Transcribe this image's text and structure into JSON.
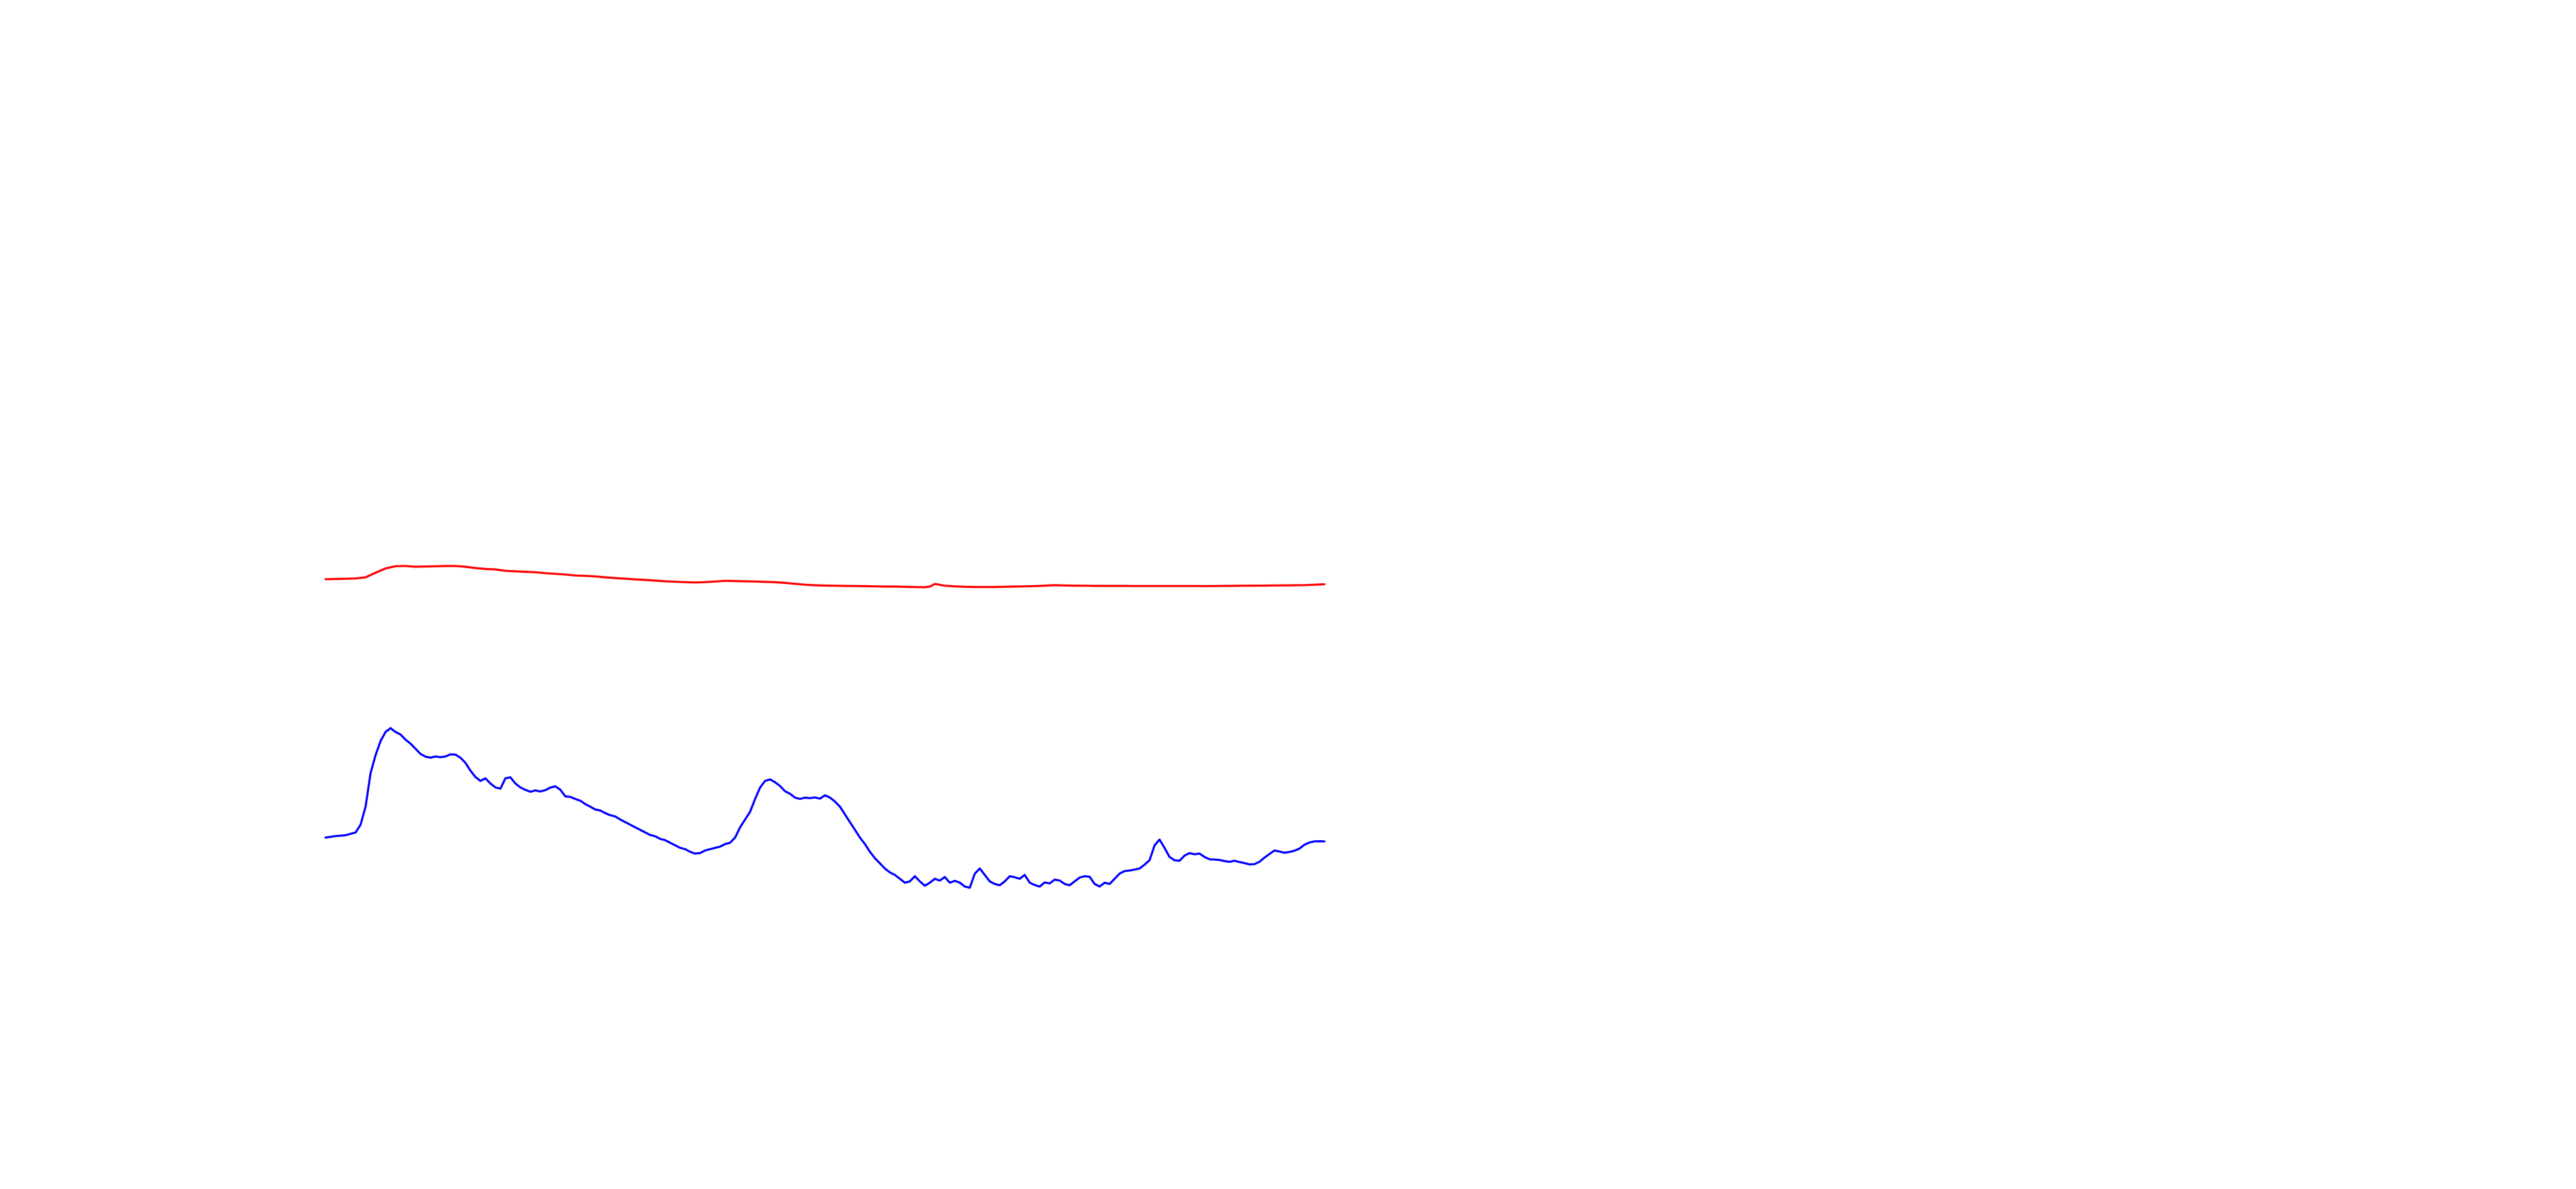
{
  "chart_data": {
    "type": "line",
    "title": "",
    "xlabel": "",
    "ylabel": "",
    "grid": false,
    "legend": "none",
    "x_range": [
      0,
      200
    ],
    "y_range": [
      0,
      100
    ],
    "series": [
      {
        "color": "#ff0000",
        "points": [
          [
            0,
            13
          ],
          [
            3,
            13.3
          ],
          [
            6,
            13.8
          ],
          [
            8,
            15
          ],
          [
            10,
            20
          ],
          [
            12,
            24.6
          ],
          [
            14,
            27
          ],
          [
            16,
            27.3
          ],
          [
            18,
            26.4
          ],
          [
            20,
            26.7
          ],
          [
            22,
            26.9
          ],
          [
            24,
            27.2
          ],
          [
            26,
            27.3
          ],
          [
            28,
            26.4
          ],
          [
            30,
            25
          ],
          [
            32,
            24
          ],
          [
            34,
            23.6
          ],
          [
            36,
            22
          ],
          [
            38,
            21.5
          ],
          [
            40,
            21
          ],
          [
            42,
            20.5
          ],
          [
            44,
            19.5
          ],
          [
            46,
            18.8
          ],
          [
            48,
            18
          ],
          [
            50,
            17
          ],
          [
            52,
            16.6
          ],
          [
            54,
            16
          ],
          [
            56,
            15
          ],
          [
            58,
            14.2
          ],
          [
            60,
            13.5
          ],
          [
            62,
            12.8
          ],
          [
            64,
            12.2
          ],
          [
            66,
            11.4
          ],
          [
            68,
            10.7
          ],
          [
            70,
            10.2
          ],
          [
            72,
            9.8
          ],
          [
            74,
            9.4
          ],
          [
            76,
            9.8
          ],
          [
            78,
            10.5
          ],
          [
            80,
            11.2
          ],
          [
            82,
            11
          ],
          [
            84,
            10.7
          ],
          [
            86,
            10.5
          ],
          [
            88,
            10.1
          ],
          [
            90,
            9.7
          ],
          [
            92,
            9
          ],
          [
            94,
            8
          ],
          [
            96,
            7
          ],
          [
            98,
            6.4
          ],
          [
            100,
            6.1
          ],
          [
            102,
            5.9
          ],
          [
            104,
            5.7
          ],
          [
            106,
            5.6
          ],
          [
            108,
            5.4
          ],
          [
            110,
            5.2
          ],
          [
            112,
            5
          ],
          [
            114,
            5
          ],
          [
            116,
            4.7
          ],
          [
            118,
            4.5
          ],
          [
            120,
            4.3
          ],
          [
            121,
            5
          ],
          [
            122,
            7.8
          ],
          [
            123,
            6.9
          ],
          [
            124,
            5.9
          ],
          [
            126,
            5.2
          ],
          [
            128,
            4.8
          ],
          [
            130,
            4.6
          ],
          [
            132,
            4.5
          ],
          [
            134,
            4.6
          ],
          [
            136,
            4.8
          ],
          [
            138,
            5
          ],
          [
            140,
            5.2
          ],
          [
            142,
            5.5
          ],
          [
            144,
            6
          ],
          [
            146,
            6.5
          ],
          [
            148,
            6.2
          ],
          [
            150,
            6
          ],
          [
            152,
            5.9
          ],
          [
            154,
            5.8
          ],
          [
            156,
            5.7
          ],
          [
            158,
            5.7
          ],
          [
            160,
            5.7
          ],
          [
            162,
            5.6
          ],
          [
            164,
            5.6
          ],
          [
            166,
            5.6
          ],
          [
            168,
            5.6
          ],
          [
            170,
            5.6
          ],
          [
            172,
            5.6
          ],
          [
            174,
            5.6
          ],
          [
            176,
            5.5
          ],
          [
            178,
            5.6
          ],
          [
            180,
            5.7
          ],
          [
            182,
            5.8
          ],
          [
            184,
            5.9
          ],
          [
            186,
            6
          ],
          [
            188,
            6.1
          ],
          [
            190,
            6.2
          ],
          [
            192,
            6.3
          ],
          [
            194,
            6.4
          ],
          [
            196,
            6.6
          ],
          [
            198,
            7
          ],
          [
            200,
            7.5
          ]
        ]
      },
      {
        "color": "#0000ff",
        "points": [
          [
            0,
            30
          ],
          [
            2,
            30.6
          ],
          [
            4,
            30.9
          ],
          [
            6,
            32
          ],
          [
            7,
            35
          ],
          [
            8,
            42
          ],
          [
            9,
            55
          ],
          [
            10,
            62
          ],
          [
            11,
            67.5
          ],
          [
            12,
            71
          ],
          [
            13,
            72.5
          ],
          [
            14,
            71
          ],
          [
            15,
            70
          ],
          [
            16,
            68
          ],
          [
            17,
            66.5
          ],
          [
            18,
            64.5
          ],
          [
            19,
            62.5
          ],
          [
            20,
            61.4
          ],
          [
            21,
            61
          ],
          [
            22,
            61.5
          ],
          [
            23,
            61.2
          ],
          [
            24,
            61.5
          ],
          [
            25,
            62.3
          ],
          [
            26,
            62.2
          ],
          [
            27,
            61
          ],
          [
            28,
            59
          ],
          [
            29,
            56
          ],
          [
            30,
            53.5
          ],
          [
            31,
            52
          ],
          [
            32,
            53
          ],
          [
            33,
            51
          ],
          [
            34,
            49.5
          ],
          [
            35,
            49
          ],
          [
            36,
            53
          ],
          [
            37,
            53.4
          ],
          [
            38,
            51
          ],
          [
            39,
            49.5
          ],
          [
            40,
            48.5
          ],
          [
            41,
            47.8
          ],
          [
            42,
            48.3
          ],
          [
            43,
            47.9
          ],
          [
            44,
            48.4
          ],
          [
            45,
            49.4
          ],
          [
            46,
            49.9
          ],
          [
            47,
            48.6
          ],
          [
            48,
            46
          ],
          [
            49,
            45.8
          ],
          [
            50,
            45
          ],
          [
            51,
            44.3
          ],
          [
            52,
            43
          ],
          [
            53,
            42
          ],
          [
            54,
            40.9
          ],
          [
            55,
            40.5
          ],
          [
            56,
            39.5
          ],
          [
            57,
            38.7
          ],
          [
            58,
            38.2
          ],
          [
            59,
            37
          ],
          [
            60,
            36
          ],
          [
            61,
            35
          ],
          [
            62,
            34
          ],
          [
            63,
            33
          ],
          [
            64,
            32
          ],
          [
            65,
            31
          ],
          [
            66,
            30.5
          ],
          [
            67,
            29.5
          ],
          [
            68,
            29
          ],
          [
            69,
            28
          ],
          [
            70,
            27
          ],
          [
            71,
            26
          ],
          [
            72,
            25.5
          ],
          [
            73,
            24.5
          ],
          [
            74,
            23.8
          ],
          [
            75,
            24
          ],
          [
            76,
            25
          ],
          [
            77,
            25.5
          ],
          [
            78,
            26
          ],
          [
            79,
            26.5
          ],
          [
            80,
            27.5
          ],
          [
            81,
            28
          ],
          [
            82,
            30
          ],
          [
            83,
            34
          ],
          [
            84,
            37
          ],
          [
            85,
            40
          ],
          [
            86,
            45
          ],
          [
            87,
            49.4
          ],
          [
            88,
            52
          ],
          [
            89,
            52.6
          ],
          [
            90,
            51.5
          ],
          [
            91,
            50
          ],
          [
            92,
            48
          ],
          [
            93,
            47
          ],
          [
            94,
            45.5
          ],
          [
            95,
            45
          ],
          [
            96,
            45.5
          ],
          [
            97,
            45.3
          ],
          [
            98,
            45.6
          ],
          [
            99,
            45.1
          ],
          [
            100,
            46.4
          ],
          [
            101,
            45.5
          ],
          [
            102,
            44
          ],
          [
            103,
            42
          ],
          [
            104,
            39
          ],
          [
            105,
            36
          ],
          [
            106,
            33
          ],
          [
            107,
            30
          ],
          [
            108,
            27.5
          ],
          [
            109,
            24.5
          ],
          [
            110,
            22
          ],
          [
            111,
            20
          ],
          [
            112,
            18
          ],
          [
            113,
            16.5
          ],
          [
            114,
            15.5
          ],
          [
            115,
            14
          ],
          [
            116,
            12.5
          ],
          [
            117,
            13
          ],
          [
            118,
            15
          ],
          [
            119,
            13
          ],
          [
            120,
            11.3
          ],
          [
            121,
            12.5
          ],
          [
            122,
            14
          ],
          [
            123,
            13.3
          ],
          [
            124,
            14.7
          ],
          [
            125,
            12.5
          ],
          [
            126,
            13.2
          ],
          [
            127,
            12.5
          ],
          [
            128,
            11
          ],
          [
            129,
            10.5
          ],
          [
            130,
            16
          ],
          [
            131,
            18
          ],
          [
            132,
            15.5
          ],
          [
            133,
            13
          ],
          [
            134,
            12
          ],
          [
            135,
            11.5
          ],
          [
            136,
            13
          ],
          [
            137,
            15
          ],
          [
            138,
            14.6
          ],
          [
            139,
            14
          ],
          [
            140,
            15.5
          ],
          [
            141,
            12.5
          ],
          [
            142,
            11.6
          ],
          [
            143,
            11
          ],
          [
            144,
            12.6
          ],
          [
            145,
            12.2
          ],
          [
            146,
            13.7
          ],
          [
            147,
            13.3
          ],
          [
            148,
            12
          ],
          [
            149,
            11.5
          ],
          [
            150,
            13
          ],
          [
            151,
            14.5
          ],
          [
            152,
            15
          ],
          [
            153,
            14.8
          ],
          [
            154,
            12
          ],
          [
            155,
            11
          ],
          [
            156,
            12.5
          ],
          [
            157,
            12
          ],
          [
            158,
            14
          ],
          [
            159,
            16
          ],
          [
            160,
            17
          ],
          [
            161,
            17.2
          ],
          [
            162,
            17.6
          ],
          [
            163,
            18
          ],
          [
            164,
            19.5
          ],
          [
            165,
            21.2
          ],
          [
            166,
            27
          ],
          [
            167,
            29.2
          ],
          [
            168,
            26
          ],
          [
            169,
            22.5
          ],
          [
            170,
            21.2
          ],
          [
            171,
            21
          ],
          [
            172,
            23
          ],
          [
            173,
            24
          ],
          [
            174,
            23.5
          ],
          [
            175,
            23.8
          ],
          [
            176,
            22.5
          ],
          [
            177,
            21.6
          ],
          [
            178,
            21.5
          ],
          [
            179,
            21.3
          ],
          [
            180,
            20.9
          ],
          [
            181,
            20.6
          ],
          [
            182,
            21
          ],
          [
            183,
            20.5
          ],
          [
            184,
            20.1
          ],
          [
            185,
            19.6
          ],
          [
            186,
            19.7
          ],
          [
            187,
            20.6
          ],
          [
            188,
            22.2
          ],
          [
            189,
            23.6
          ],
          [
            190,
            25
          ],
          [
            191,
            24.6
          ],
          [
            192,
            24.1
          ],
          [
            193,
            24.4
          ],
          [
            194,
            24.9
          ],
          [
            195,
            25.7
          ],
          [
            196,
            27.2
          ],
          [
            197,
            28.1
          ],
          [
            198,
            28.5
          ],
          [
            199,
            28.6
          ],
          [
            200,
            28.5
          ]
        ]
      }
    ]
  }
}
